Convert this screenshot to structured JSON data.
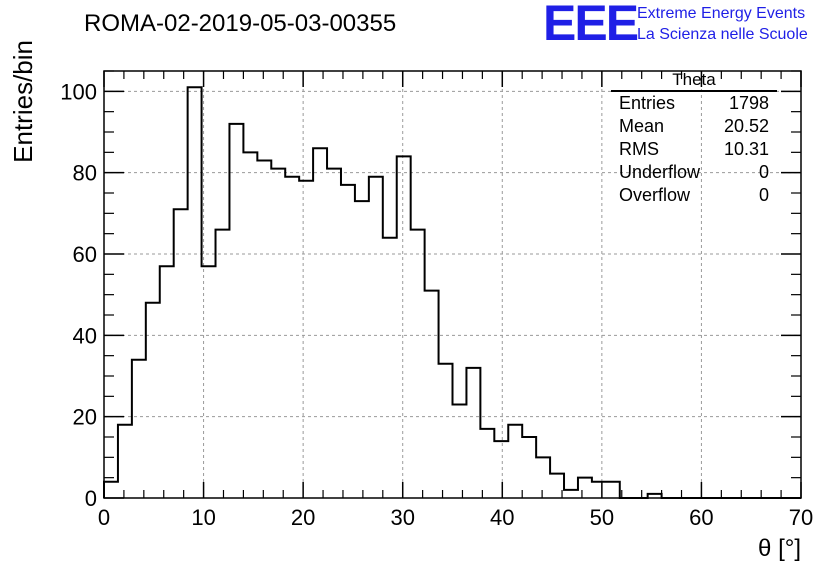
{
  "header": {
    "title": "ROMA-02-2019-05-03-00355",
    "logo_text": "EEE",
    "logo_line1": "Extreme Energy Events",
    "logo_line2": "La Scienza nelle Scuole",
    "logo_color": "#1f1fe6"
  },
  "stats_box": {
    "title": "Theta",
    "rows": [
      {
        "label": "Entries",
        "value": "1798"
      },
      {
        "label": "Mean",
        "value": "20.52"
      },
      {
        "label": "RMS",
        "value": "10.31"
      },
      {
        "label": "Underflow",
        "value": "0"
      },
      {
        "label": "Overflow",
        "value": "0"
      }
    ]
  },
  "chart_data": {
    "type": "bar",
    "histogram": true,
    "title": "ROMA-02-2019-05-03-00355",
    "xlabel": "θ [°]",
    "ylabel": "Entries/bin",
    "xlim": [
      0,
      70
    ],
    "ylim": [
      0,
      105
    ],
    "bin_width": 1.4,
    "bin_edges_start": 0,
    "xticks": [
      0,
      10,
      20,
      30,
      40,
      50,
      60,
      70
    ],
    "yticks": [
      0,
      20,
      40,
      60,
      80,
      100
    ],
    "grid": true,
    "values": [
      4,
      18,
      34,
      48,
      57,
      71,
      101,
      57,
      66,
      92,
      85,
      83,
      81,
      79,
      78,
      86,
      81,
      77,
      73,
      79,
      64,
      84,
      66,
      51,
      33,
      23,
      32,
      17,
      14,
      18,
      15,
      10,
      6,
      2,
      5,
      4,
      4,
      0,
      0,
      1,
      0,
      0,
      0,
      0,
      0,
      0,
      0,
      0,
      0,
      0
    ],
    "line_color": "#000000"
  }
}
